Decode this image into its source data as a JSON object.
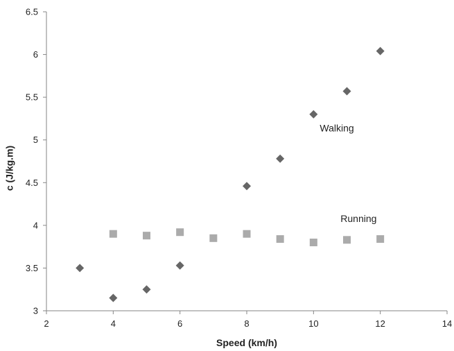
{
  "chart_data": {
    "type": "scatter",
    "xlabel": "Speed (km/h)",
    "ylabel": "c (J/kg.m)",
    "xlim": [
      2,
      14
    ],
    "ylim": [
      3,
      6.5
    ],
    "x_ticks": [
      "2",
      "4",
      "6",
      "8",
      "10",
      "12",
      "14"
    ],
    "y_ticks": [
      "3",
      "3.5",
      "4",
      "4.5",
      "5",
      "5.5",
      "6",
      "6.5"
    ],
    "grid": false,
    "series": [
      {
        "name": "Walking",
        "marker": "diamond",
        "color": "#666666",
        "points": [
          {
            "x": 3,
            "y": 3.5
          },
          {
            "x": 4,
            "y": 3.15
          },
          {
            "x": 5,
            "y": 3.25
          },
          {
            "x": 6,
            "y": 3.53
          },
          {
            "x": 8,
            "y": 4.46
          },
          {
            "x": 9,
            "y": 4.78
          },
          {
            "x": 10,
            "y": 5.3
          },
          {
            "x": 11,
            "y": 5.57
          },
          {
            "x": 12,
            "y": 6.04
          }
        ]
      },
      {
        "name": "Running",
        "marker": "square",
        "color": "#ababab",
        "points": [
          {
            "x": 4,
            "y": 3.9
          },
          {
            "x": 5,
            "y": 3.88
          },
          {
            "x": 6,
            "y": 3.92
          },
          {
            "x": 7,
            "y": 3.85
          },
          {
            "x": 8,
            "y": 3.9
          },
          {
            "x": 9,
            "y": 3.84
          },
          {
            "x": 10,
            "y": 3.8
          },
          {
            "x": 11,
            "y": 3.83
          },
          {
            "x": 12,
            "y": 3.84
          }
        ]
      }
    ],
    "annotations": [
      {
        "text": "Walking",
        "x": 10.7,
        "y": 5.1
      },
      {
        "text": "Running",
        "x": 11.35,
        "y": 4.04
      }
    ]
  }
}
